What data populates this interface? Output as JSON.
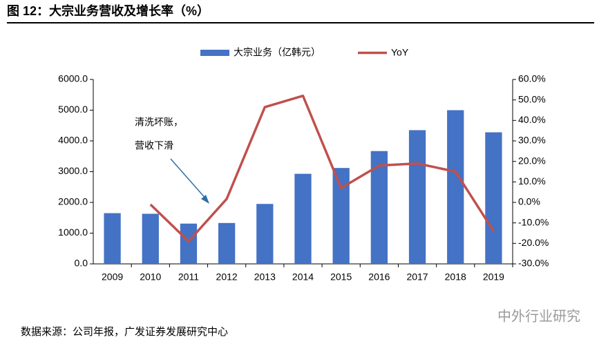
{
  "chart_data": {
    "type": "combo",
    "title": "图 12：大宗业务营收及增长率（%）",
    "categories": [
      "2009",
      "2010",
      "2011",
      "2012",
      "2013",
      "2014",
      "2015",
      "2016",
      "2017",
      "2018",
      "2019"
    ],
    "series": [
      {
        "name": "大宗业务（亿韩元）",
        "type": "bar",
        "color": "#4472c4",
        "values": [
          1650,
          1630,
          1310,
          1330,
          1950,
          2930,
          3120,
          3670,
          4350,
          5000,
          4280
        ]
      },
      {
        "name": "YoY",
        "type": "line",
        "axis": "y2",
        "color": "#c0504d",
        "values": [
          null,
          -1,
          -19,
          1.7,
          46.5,
          52,
          7,
          18,
          19,
          15,
          -14
        ]
      }
    ],
    "ylim": [
      0,
      6000
    ],
    "yticks": [
      {
        "value": 0,
        "label": "0.0"
      },
      {
        "value": 1000,
        "label": "1000.0"
      },
      {
        "value": 2000,
        "label": "2000.0"
      },
      {
        "value": 3000,
        "label": "3000.0"
      },
      {
        "value": 4000,
        "label": "4000.0"
      },
      {
        "value": 5000,
        "label": "5000.0"
      },
      {
        "value": 6000,
        "label": "6000.0"
      }
    ],
    "y2lim": [
      -30,
      60
    ],
    "y2ticks": [
      {
        "value": -30,
        "label": "-30.0%"
      },
      {
        "value": -20,
        "label": "-20.0%"
      },
      {
        "value": -10,
        "label": "-10.0%"
      },
      {
        "value": 0,
        "label": "0.0%"
      },
      {
        "value": 10,
        "label": "10.0%"
      },
      {
        "value": 20,
        "label": "20.0%"
      },
      {
        "value": 30,
        "label": "30.0%"
      },
      {
        "value": 40,
        "label": "40.0%"
      },
      {
        "value": 50,
        "label": "50.0%"
      },
      {
        "value": 60,
        "label": "60.0%"
      }
    ],
    "annotation": [
      "清洗坏账，",
      "营收下滑"
    ],
    "source": "数据来源：公司年报，广发证券发展研究中心",
    "watermark": "中外行业研究",
    "grid": false
  }
}
